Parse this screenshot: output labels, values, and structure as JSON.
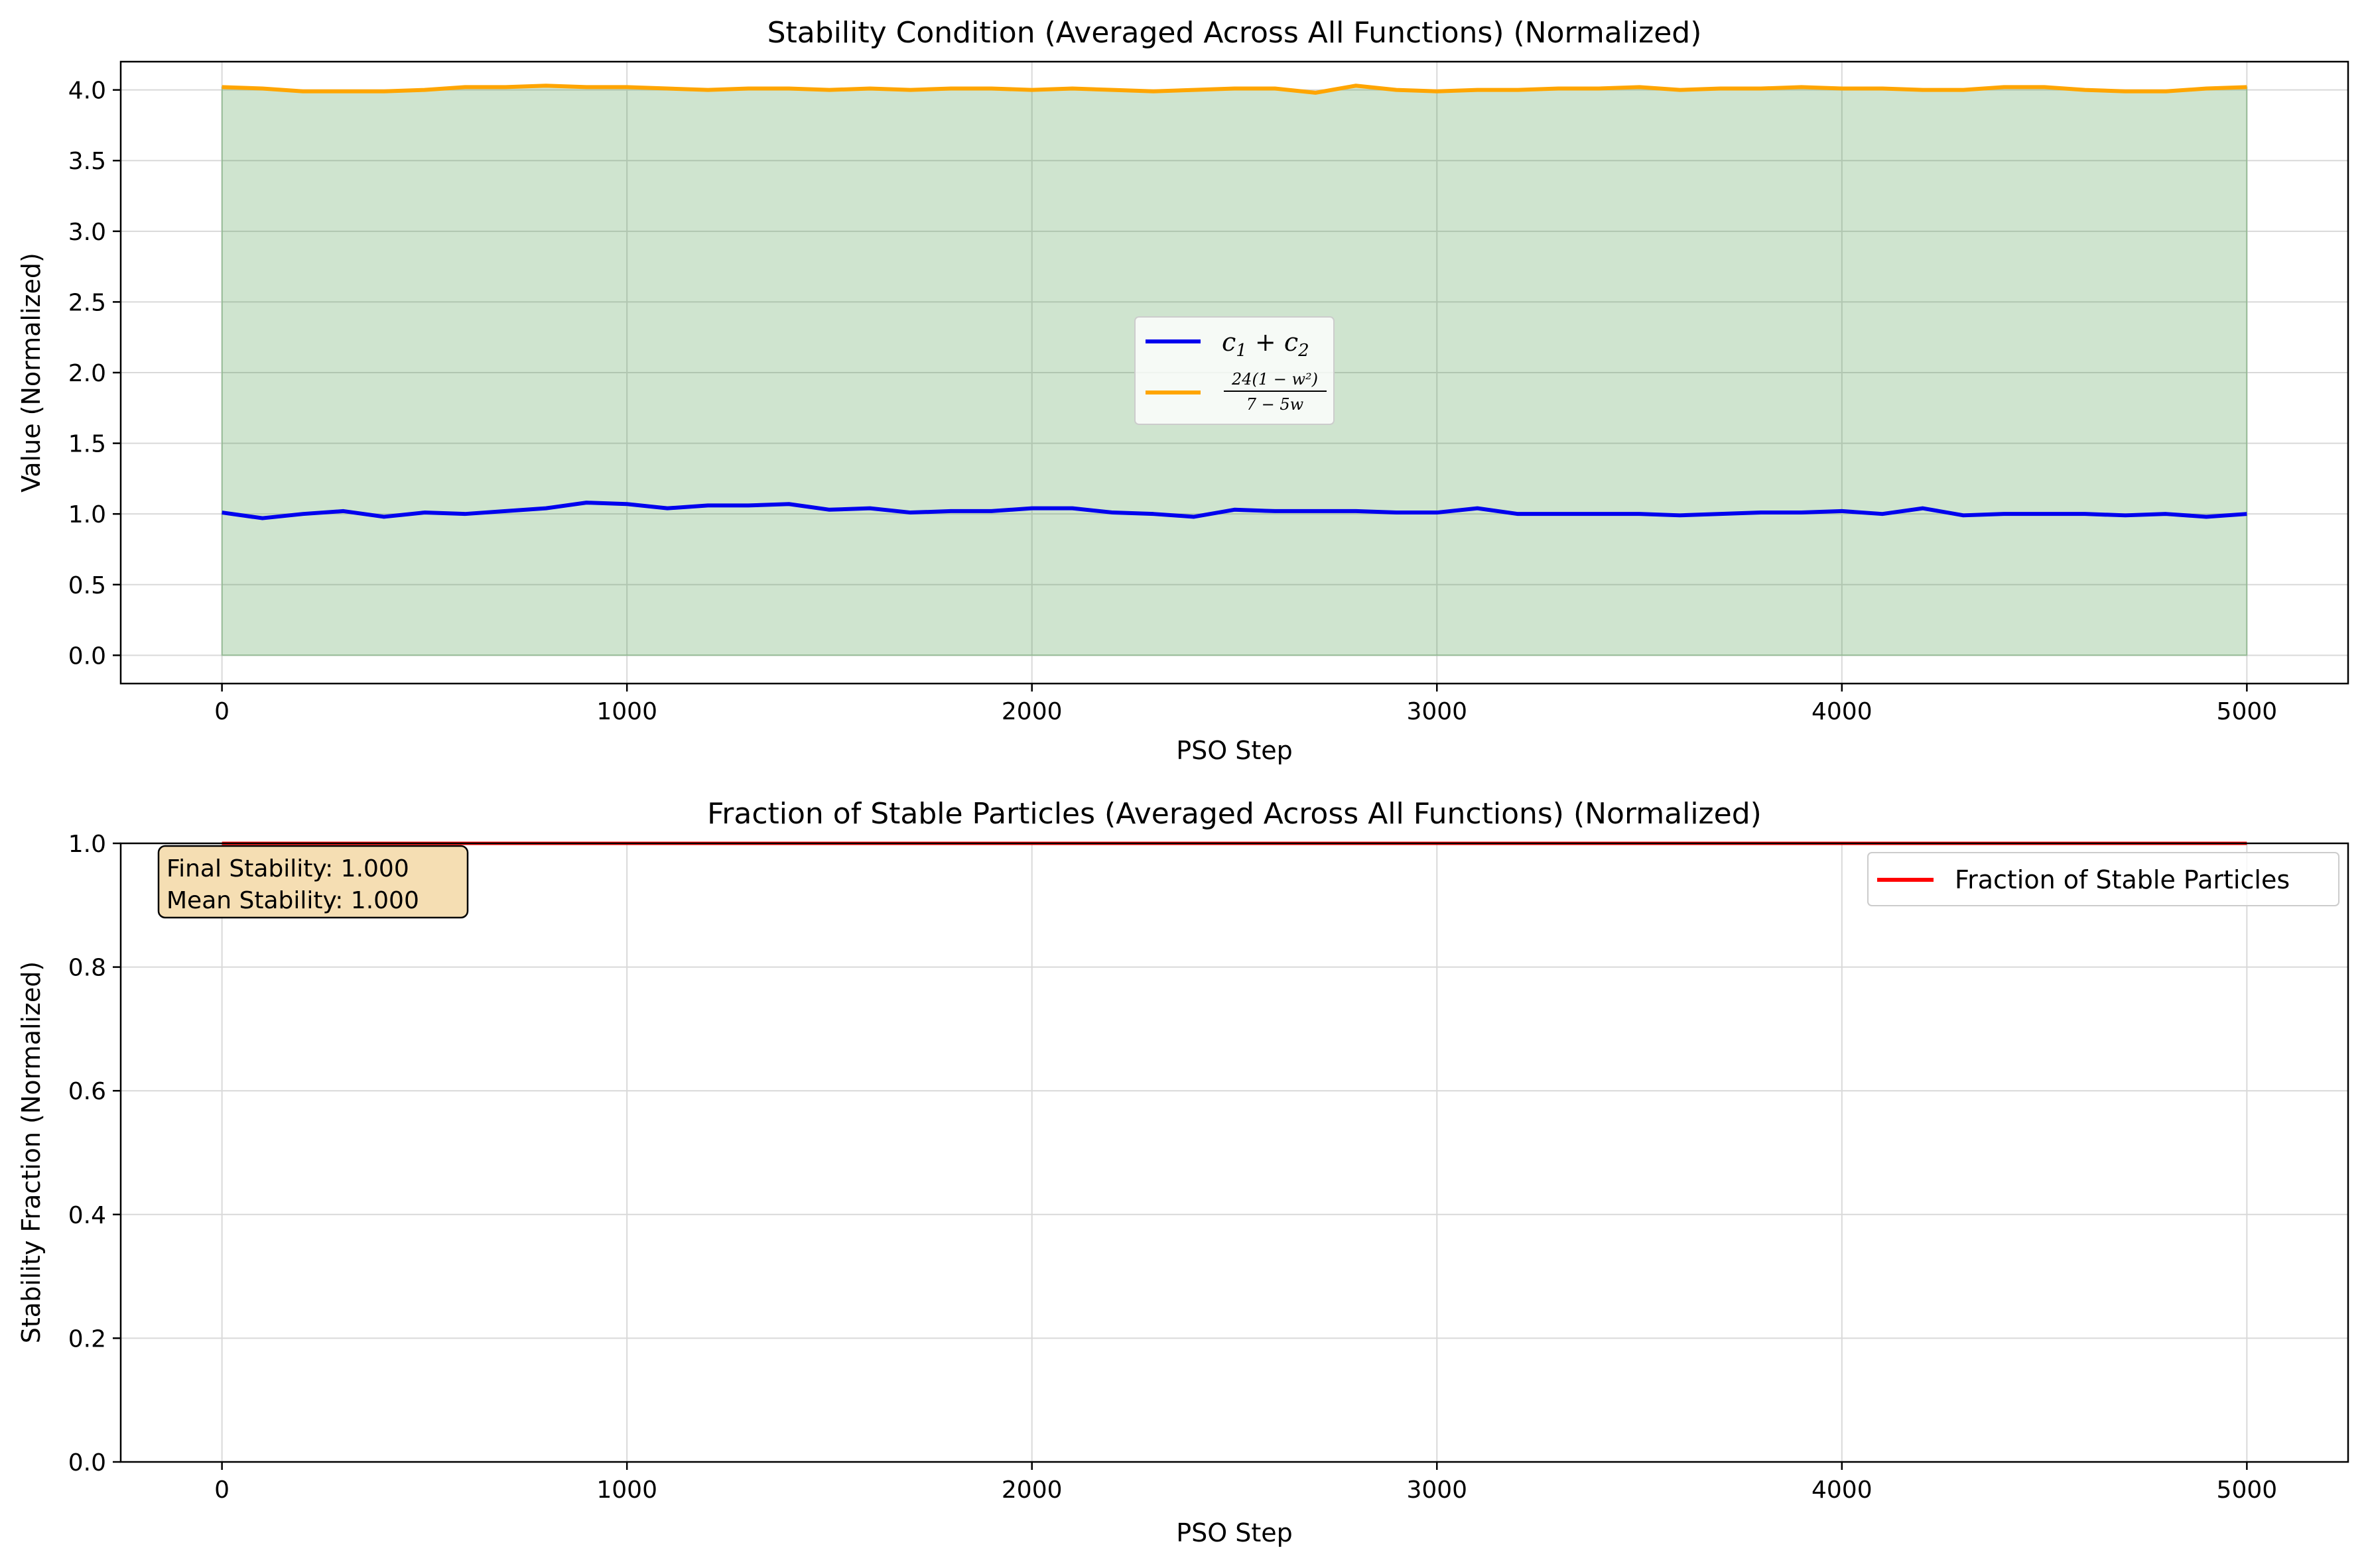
{
  "colors": {
    "c_sum": "#0000ee",
    "bound": "#ffa500",
    "fill": "#2e8b2e",
    "stable": "#ff0000",
    "grid": "#d9d9d9",
    "annotation_bg": "#f5deb3"
  },
  "chart_data": [
    {
      "type": "line",
      "title": "Stability Condition (Averaged Across All Functions) (Normalized)",
      "xlabel": "PSO Step",
      "ylabel": "Value (Normalized)",
      "xlim": [
        -250,
        5250
      ],
      "ylim": [
        -0.2,
        4.2
      ],
      "xticks": [
        0,
        1000,
        2000,
        3000,
        4000,
        5000
      ],
      "yticks": [
        0.0,
        0.5,
        1.0,
        1.5,
        2.0,
        2.5,
        3.0,
        3.5,
        4.0
      ],
      "xtick_labels": [
        "0",
        "1000",
        "2000",
        "3000",
        "4000",
        "5000"
      ],
      "ytick_labels": [
        "0.0",
        "0.5",
        "1.0",
        "1.5",
        "2.0",
        "2.5",
        "3.0",
        "3.5",
        "4.0"
      ],
      "grid": true,
      "legend_position": "center",
      "fill_between": "0 to 24(1−w²)/(7−5w) curve, green, translucent",
      "x": [
        0,
        100,
        200,
        300,
        400,
        500,
        600,
        700,
        800,
        900,
        1000,
        1100,
        1200,
        1300,
        1400,
        1500,
        1600,
        1700,
        1800,
        1900,
        2000,
        2100,
        2200,
        2300,
        2400,
        2500,
        2600,
        2700,
        2800,
        2900,
        3000,
        3100,
        3200,
        3300,
        3400,
        3500,
        3600,
        3700,
        3800,
        3900,
        4000,
        4100,
        4200,
        4300,
        4400,
        4500,
        4600,
        4700,
        4800,
        4900,
        5000
      ],
      "series": [
        {
          "name": "c_1 + c_2",
          "values": [
            1.01,
            0.97,
            1.0,
            1.02,
            0.98,
            1.01,
            1.0,
            1.02,
            1.04,
            1.08,
            1.07,
            1.04,
            1.06,
            1.06,
            1.07,
            1.03,
            1.04,
            1.01,
            1.02,
            1.02,
            1.04,
            1.04,
            1.01,
            1.0,
            0.98,
            1.03,
            1.02,
            1.02,
            1.02,
            1.01,
            1.01,
            1.04,
            1.0,
            1.0,
            1.0,
            1.0,
            0.99,
            1.0,
            1.01,
            1.01,
            1.02,
            1.0,
            1.04,
            0.99,
            1.0,
            1.0,
            1.0,
            0.99,
            1.0,
            0.98,
            1.0
          ]
        },
        {
          "name": "24(1 − w²) / (7 − 5w)",
          "values": [
            4.02,
            4.01,
            3.99,
            3.99,
            3.99,
            4.0,
            4.02,
            4.02,
            4.03,
            4.02,
            4.02,
            4.01,
            4.0,
            4.01,
            4.01,
            4.0,
            4.01,
            4.0,
            4.01,
            4.01,
            4.0,
            4.01,
            4.0,
            3.99,
            4.0,
            4.01,
            4.01,
            3.98,
            4.03,
            4.0,
            3.99,
            4.0,
            4.0,
            4.01,
            4.01,
            4.02,
            4.0,
            4.01,
            4.01,
            4.02,
            4.01,
            4.01,
            4.0,
            4.0,
            4.02,
            4.02,
            4.0,
            3.99,
            3.99,
            4.01,
            4.02
          ]
        }
      ],
      "legend": [
        {
          "label_main": "c",
          "label_sub1": "1",
          "label_plus": " + ",
          "label_sub2": "2"
        },
        {
          "num": "24(1 − w²)",
          "den": "7 − 5w"
        }
      ]
    },
    {
      "type": "line",
      "title": "Fraction of Stable Particles (Averaged Across All Functions) (Normalized)",
      "xlabel": "PSO Step",
      "ylabel": "Stability Fraction (Normalized)",
      "xlim": [
        -250,
        5250
      ],
      "ylim": [
        0.0,
        1.0
      ],
      "xticks": [
        0,
        1000,
        2000,
        3000,
        4000,
        5000
      ],
      "yticks": [
        0.0,
        0.2,
        0.4,
        0.6,
        0.8,
        1.0
      ],
      "xtick_labels": [
        "0",
        "1000",
        "2000",
        "3000",
        "4000",
        "5000"
      ],
      "ytick_labels": [
        "0.0",
        "0.2",
        "0.4",
        "0.6",
        "0.8",
        "1.0"
      ],
      "grid": true,
      "legend_position": "top-right",
      "x": [
        0,
        5000
      ],
      "series": [
        {
          "name": "Fraction of Stable Particles",
          "values": [
            1.0,
            1.0
          ]
        }
      ],
      "annotation": [
        "Final Stability: 1.000",
        "Mean Stability: 1.000"
      ]
    }
  ]
}
